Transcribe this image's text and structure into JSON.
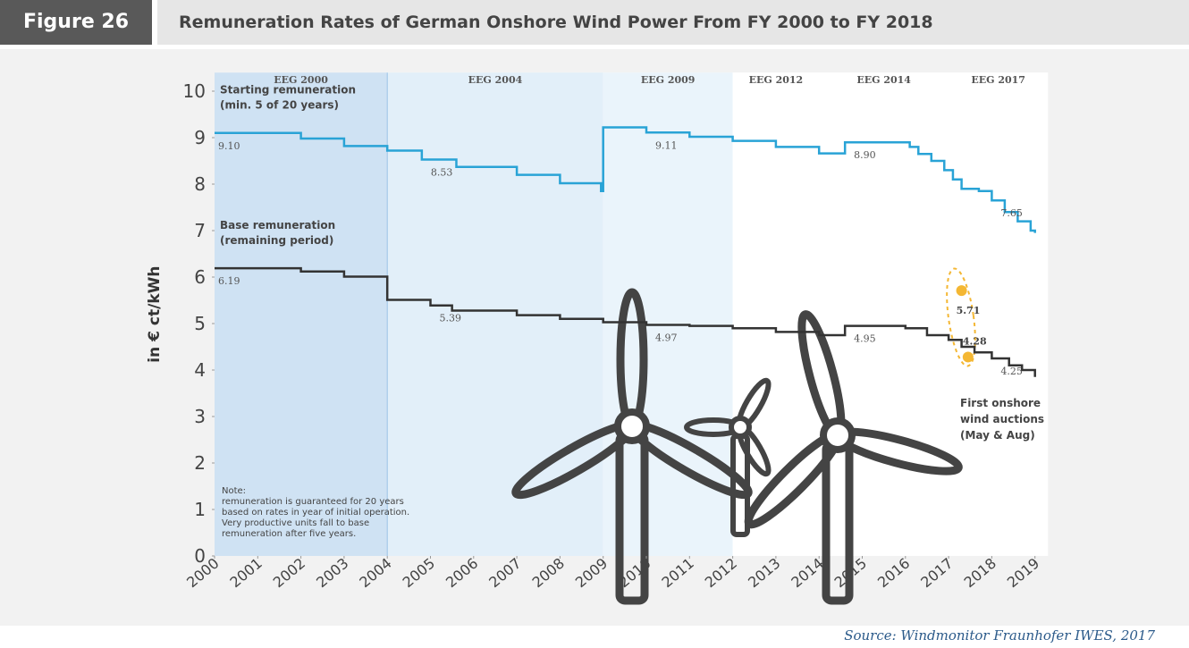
{
  "header": {
    "figure": "Figure 26",
    "title": "Remuneration Rates of German Onshore Wind Power From FY 2000 to FY 2018"
  },
  "chart_data": {
    "type": "step",
    "y_label": "in € ct/kWh",
    "xlim": [
      2000,
      2019.3
    ],
    "ylim": [
      0,
      10.4
    ],
    "xticks": [
      2000,
      2001,
      2002,
      2003,
      2004,
      2005,
      2006,
      2007,
      2008,
      2009,
      2010,
      2011,
      2012,
      2013,
      2014,
      2015,
      2016,
      2017,
      2018,
      2019
    ],
    "yticks": [
      0,
      1,
      2,
      3,
      4,
      5,
      6,
      7,
      8,
      9,
      10
    ],
    "periods": [
      {
        "label": "EEG 2000",
        "start": 2000,
        "end": 2004,
        "color": "#cfe2f3"
      },
      {
        "label": "EEG 2004",
        "start": 2004,
        "end": 2009,
        "color": "#e2eff9"
      },
      {
        "label": "EEG 2009",
        "start": 2009,
        "end": 2012,
        "color": "#eaf4fb"
      },
      {
        "label": "EEG 2012",
        "start": 2012,
        "end": 2014,
        "color": "#ffffff"
      },
      {
        "label": "EEG 2014",
        "start": 2014,
        "end": 2017,
        "color": "#ffffff"
      },
      {
        "label": "EEG 2017",
        "start": 2017,
        "end": 2019.3,
        "color": "#ffffff"
      }
    ],
    "series": [
      {
        "name": "Starting remuneration",
        "note": "(min. 5 of 20 years)",
        "color": "#29a3d6",
        "x": [
          2000,
          2002,
          2003,
          2004,
          2004.8,
          2005.6,
          2007,
          2008,
          2008.95,
          2009,
          2010,
          2011,
          2012,
          2013,
          2014,
          2014.6,
          2016.1,
          2016.3,
          2016.6,
          2016.9,
          2017.1,
          2017.3,
          2017.7,
          2018,
          2018.3,
          2018.6,
          2018.9,
          2019
        ],
        "values": [
          9.1,
          8.98,
          8.82,
          8.72,
          8.53,
          8.37,
          8.2,
          8.02,
          7.85,
          9.22,
          9.11,
          9.02,
          8.93,
          8.8,
          8.66,
          8.9,
          8.8,
          8.65,
          8.5,
          8.3,
          8.1,
          7.9,
          7.85,
          7.65,
          7.4,
          7.2,
          7.0,
          6.95
        ],
        "value_labels": [
          "9.10",
          null,
          null,
          null,
          "8.53",
          null,
          null,
          null,
          null,
          null,
          "9.11",
          null,
          null,
          null,
          null,
          "8.90",
          null,
          null,
          null,
          null,
          null,
          null,
          null,
          "7.65",
          null,
          null,
          null,
          null
        ]
      },
      {
        "name": "Base remuneration",
        "note": "(remaining period)",
        "color": "#333333",
        "x": [
          2000,
          2002,
          2003,
          2004,
          2005,
          2005.5,
          2007,
          2008,
          2009,
          2010,
          2011,
          2012,
          2013,
          2014,
          2014.6,
          2016,
          2016.5,
          2017,
          2017.3,
          2017.6,
          2018,
          2018.4,
          2018.7,
          2019
        ],
        "values": [
          6.19,
          6.12,
          6.01,
          5.51,
          5.39,
          5.28,
          5.18,
          5.1,
          5.03,
          4.97,
          4.95,
          4.9,
          4.82,
          4.75,
          4.95,
          4.9,
          4.75,
          4.65,
          4.5,
          4.38,
          4.25,
          4.1,
          4.0,
          3.85
        ],
        "value_labels": [
          "6.19",
          null,
          null,
          null,
          "5.39",
          null,
          null,
          null,
          null,
          "4.97",
          null,
          null,
          null,
          null,
          "4.95",
          null,
          null,
          null,
          null,
          null,
          "4.25",
          null,
          null,
          null
        ]
      }
    ],
    "auctions": {
      "name": "First onshore wind auctions (May & Aug)",
      "color": "#f4b733",
      "x": [
        2017.3,
        2017.45
      ],
      "values": [
        5.71,
        4.28
      ]
    },
    "note": [
      "Note:",
      "remuneration is guaranteed for 20 years",
      "based on rates in year of initial operation.",
      "Very productive units fall to base",
      "remuneration after five years."
    ]
  },
  "source": "Source: Windmonitor Fraunhofer IWES, 2017"
}
